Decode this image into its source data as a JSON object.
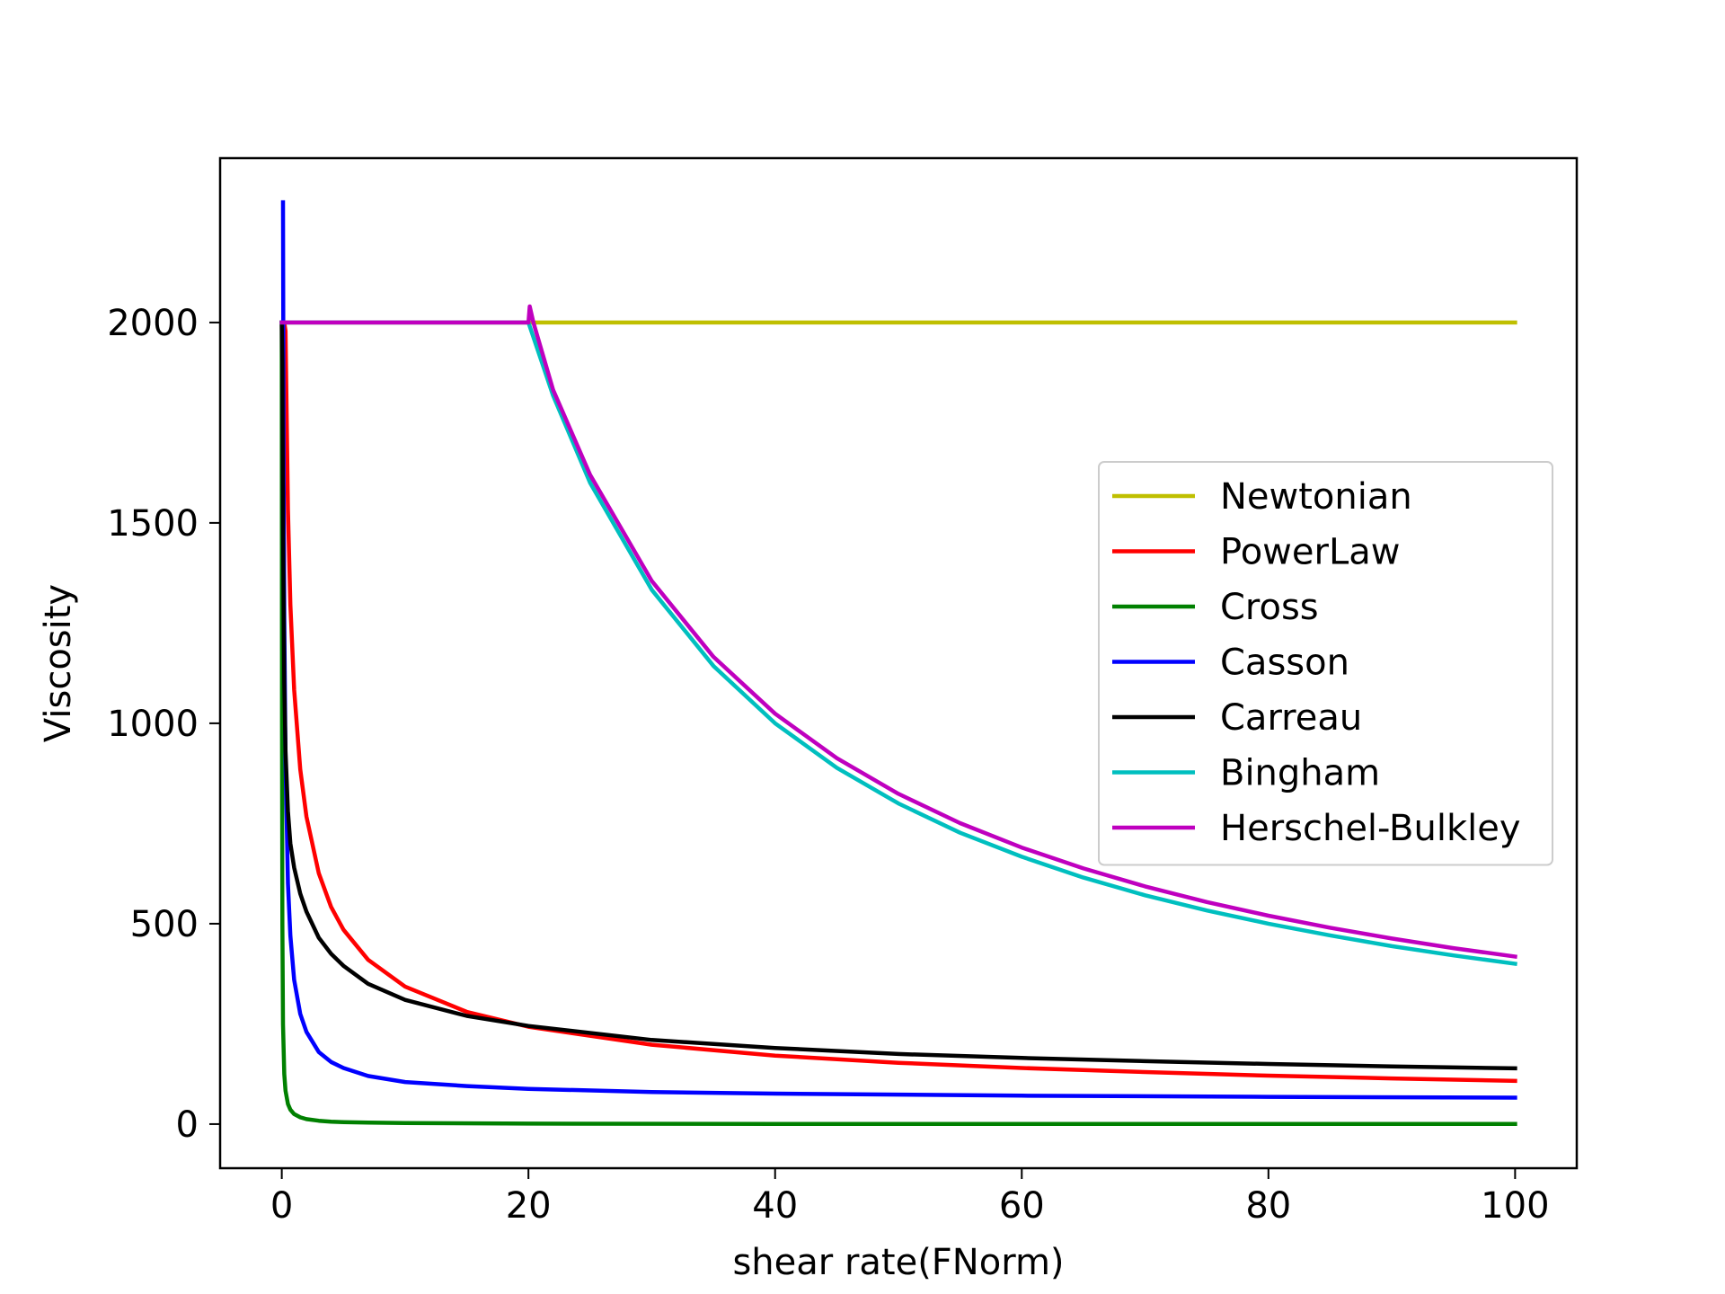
{
  "chart_data": {
    "type": "line",
    "title": "",
    "xlabel": "shear rate(FNorm)",
    "ylabel": "Viscosity",
    "xlim": [
      -5,
      105
    ],
    "ylim": [
      -110,
      2410
    ],
    "xticks": [
      0,
      20,
      40,
      60,
      80,
      100
    ],
    "yticks": [
      0,
      500,
      1000,
      1500,
      2000
    ],
    "grid": false,
    "legend_position": "center-right",
    "series": [
      {
        "name": "Newtonian",
        "color": "#bfbf00",
        "x": [
          0,
          100
        ],
        "y": [
          2000,
          2000
        ]
      },
      {
        "name": "PowerLaw",
        "color": "#ff0000",
        "x": [
          0.05,
          0.1,
          0.2,
          0.3,
          0.5,
          0.7,
          1,
          1.5,
          2,
          3,
          4,
          5,
          7,
          10,
          15,
          20,
          30,
          40,
          50,
          60,
          70,
          80,
          90,
          100
        ],
        "y": [
          2000,
          2000,
          2000,
          1979,
          1533,
          1296,
          1084,
          885,
          767,
          626,
          542,
          485,
          410,
          343,
          280,
          243,
          198,
          171,
          153,
          140,
          130,
          121,
          114,
          108
        ]
      },
      {
        "name": "Cross",
        "color": "#008000",
        "x": [
          0,
          0.02,
          0.05,
          0.1,
          0.2,
          0.3,
          0.5,
          0.7,
          1,
          1.5,
          2,
          3,
          4,
          5,
          7,
          10,
          20,
          40,
          60,
          80,
          100
        ],
        "y": [
          2000,
          995,
          498,
          249,
          125,
          83,
          50,
          36,
          25,
          17,
          12.5,
          8.3,
          6.2,
          5,
          3.6,
          2.5,
          1.2,
          0.6,
          0.4,
          0.3,
          0.25
        ]
      },
      {
        "name": "Casson",
        "color": "#0000ff",
        "x": [
          0.1,
          0.15,
          0.2,
          0.3,
          0.5,
          0.7,
          1,
          1.5,
          2,
          3,
          4,
          5,
          7,
          10,
          15,
          20,
          30,
          40,
          60,
          80,
          100
        ],
        "y": [
          2300,
          1600,
          1260,
          905,
          600,
          470,
          360,
          275,
          230,
          180,
          155,
          140,
          120,
          105,
          95,
          88,
          80,
          76,
          71,
          68,
          66
        ]
      },
      {
        "name": "Carreau",
        "color": "#000000",
        "x": [
          0,
          0.05,
          0.1,
          0.2,
          0.3,
          0.5,
          0.7,
          1,
          1.5,
          2,
          3,
          4,
          5,
          7,
          10,
          15,
          20,
          30,
          40,
          50,
          60,
          70,
          80,
          90,
          100
        ],
        "y": [
          2000,
          1900,
          1500,
          1100,
          930,
          780,
          700,
          640,
          575,
          530,
          465,
          425,
          395,
          350,
          310,
          270,
          245,
          210,
          190,
          175,
          165,
          157,
          150,
          144,
          139
        ]
      },
      {
        "name": "Bingham",
        "color": "#00bfbf",
        "x": [
          0,
          20,
          22,
          25,
          30,
          35,
          40,
          45,
          50,
          55,
          60,
          65,
          70,
          75,
          80,
          85,
          90,
          95,
          100
        ],
        "y": [
          2000,
          2000,
          1818,
          1600,
          1333,
          1143,
          1000,
          889,
          800,
          727,
          667,
          615,
          571,
          533,
          500,
          471,
          444,
          421,
          400
        ]
      },
      {
        "name": "Herschel-Bulkley",
        "color": "#bf00bf",
        "x": [
          0,
          20,
          20.1,
          20.4,
          22,
          25,
          30,
          35,
          40,
          45,
          50,
          55,
          60,
          65,
          70,
          75,
          80,
          85,
          90,
          95,
          100
        ],
        "y": [
          2000,
          2000,
          2040,
          2000,
          1832,
          1620,
          1355,
          1166,
          1024,
          913,
          824,
          751,
          690,
          638,
          593,
          554,
          520,
          490,
          463,
          439,
          418
        ]
      }
    ]
  }
}
